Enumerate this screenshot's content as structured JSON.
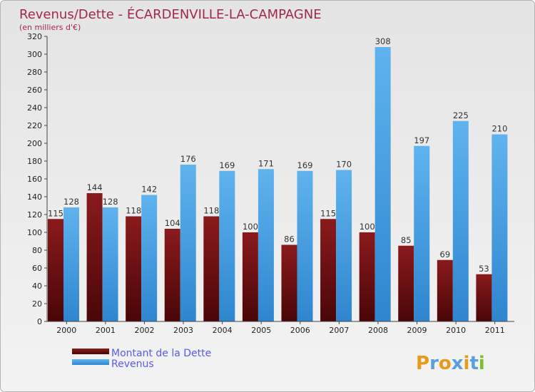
{
  "chart_data": {
    "type": "bar",
    "title": "Revenus/Dette - ÉCARDENVILLE-LA-CAMPAGNE",
    "subtitle": "(en milliers d'€)",
    "xlabel": "",
    "ylabel": "",
    "ylim": [
      0,
      320
    ],
    "ytick_step": 20,
    "grid": false,
    "legend_position": "bottom-left",
    "categories": [
      "2000",
      "2001",
      "2002",
      "2003",
      "2004",
      "2005",
      "2006",
      "2007",
      "2008",
      "2009",
      "2010",
      "2011"
    ],
    "series": [
      {
        "name": "Montant de la Dette",
        "color": "#7a0f12",
        "values": [
          115,
          144,
          118,
          104,
          118,
          100,
          86,
          115,
          100,
          85,
          69,
          53
        ]
      },
      {
        "name": "Revenus",
        "color": "#4aa3e6",
        "values": [
          128,
          128,
          142,
          176,
          169,
          171,
          169,
          170,
          308,
          197,
          225,
          210
        ]
      }
    ]
  },
  "branding": {
    "logo_text": "Proxiti",
    "letter_colors": [
      "#e89a1c",
      "#5aa0de",
      "#e89a1c",
      "#5aa0de",
      "#e89a1c",
      "#5aa0de",
      "#7cbf2a"
    ]
  }
}
